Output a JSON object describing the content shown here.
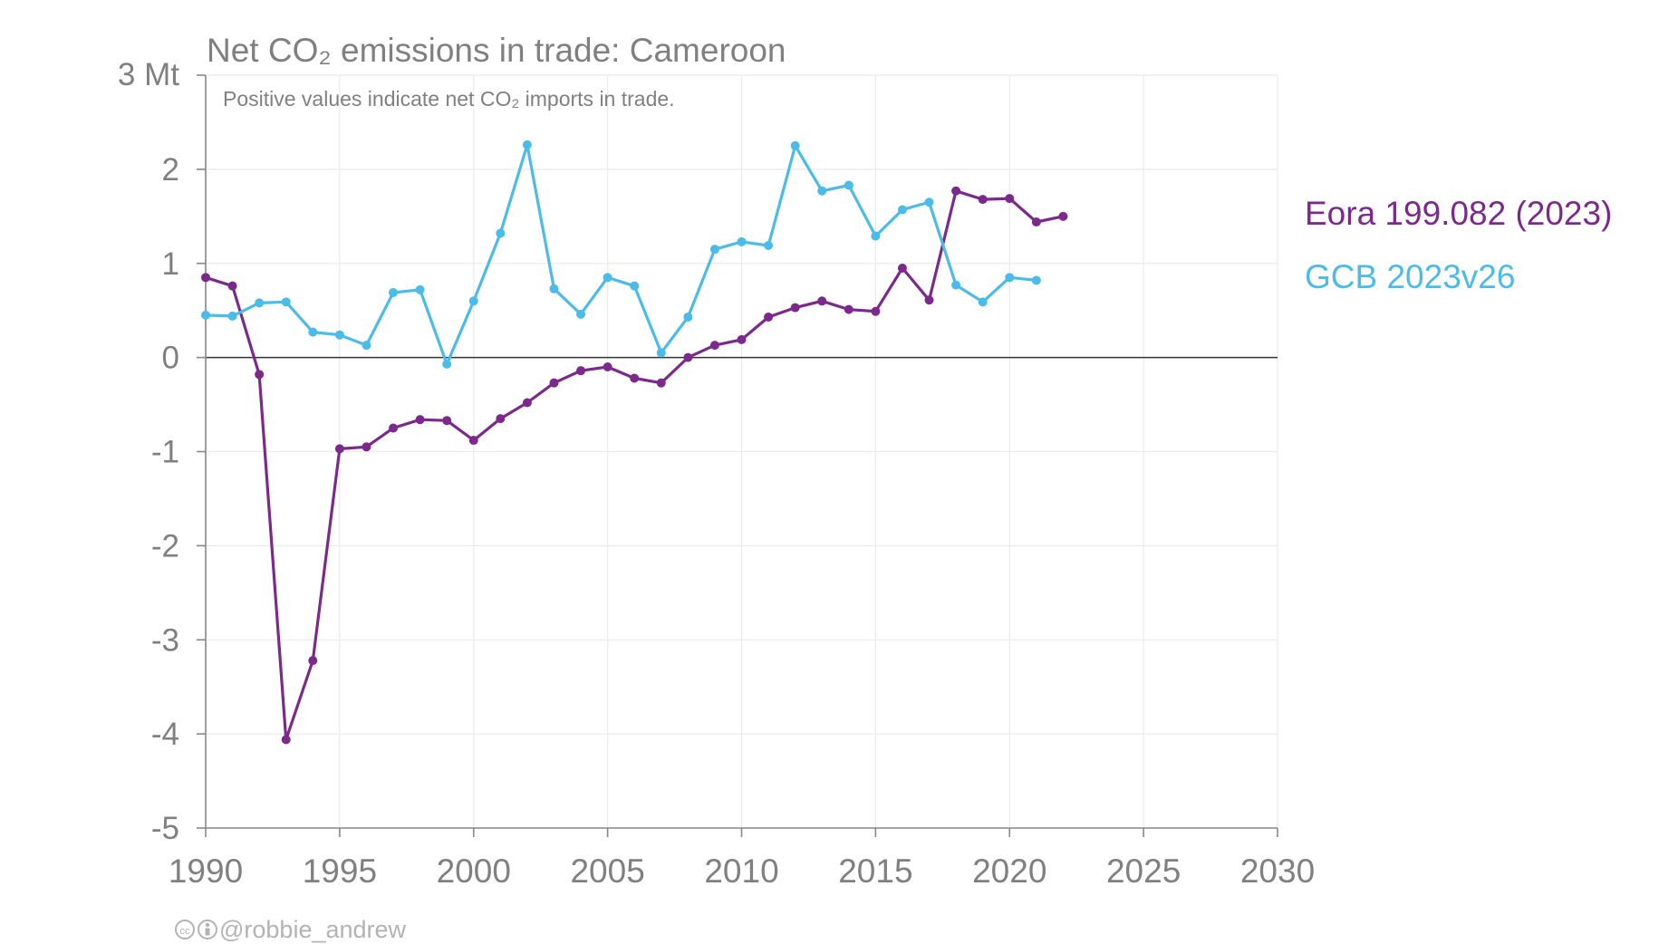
{
  "chart_data": {
    "type": "line",
    "title": "Net CO₂ emissions in trade: Cameroon",
    "subtitle": "Positive values indicate net CO₂ imports in trade.",
    "xlabel": "",
    "ylabel": "",
    "y_unit_label": "3 Mt",
    "xlim": [
      1990,
      2030
    ],
    "ylim": [
      -5,
      3
    ],
    "x_ticks": [
      "1990",
      "1995",
      "2000",
      "2005",
      "2010",
      "2015",
      "2020",
      "2025",
      "2030"
    ],
    "y_ticks": [
      "2",
      "1",
      "0",
      "-1",
      "-2",
      "-3",
      "-4",
      "-5"
    ],
    "grid": true,
    "legend_position": "right",
    "series": [
      {
        "name": "Eora 199.082 (2023)",
        "color": "#7b2a8c",
        "x": [
          1990,
          1991,
          1992,
          1993,
          1994,
          1995,
          1996,
          1997,
          1998,
          1999,
          2000,
          2001,
          2002,
          2003,
          2004,
          2005,
          2006,
          2007,
          2008,
          2009,
          2010,
          2011,
          2012,
          2013,
          2014,
          2015,
          2016,
          2017,
          2018,
          2019,
          2020,
          2021,
          2022
        ],
        "y": [
          0.85,
          0.76,
          -0.18,
          -4.06,
          -3.22,
          -0.97,
          -0.95,
          -0.75,
          -0.66,
          -0.67,
          -0.88,
          -0.65,
          -0.48,
          -0.27,
          -0.14,
          -0.1,
          -0.22,
          -0.27,
          0.0,
          0.13,
          0.19,
          0.43,
          0.53,
          0.6,
          0.51,
          0.49,
          0.95,
          0.61,
          1.77,
          1.68,
          1.69,
          1.44,
          1.5
        ]
      },
      {
        "name": "GCB 2023v26",
        "color": "#4bbbe8",
        "x": [
          1990,
          1991,
          1992,
          1993,
          1994,
          1995,
          1996,
          1997,
          1998,
          1999,
          2000,
          2001,
          2002,
          2003,
          2004,
          2005,
          2006,
          2007,
          2008,
          2009,
          2010,
          2011,
          2012,
          2013,
          2014,
          2015,
          2016,
          2017,
          2018,
          2019,
          2020,
          2021
        ],
        "y": [
          0.45,
          0.44,
          0.58,
          0.59,
          0.27,
          0.24,
          0.13,
          0.69,
          0.72,
          -0.07,
          0.6,
          1.32,
          2.26,
          0.73,
          0.46,
          0.85,
          0.76,
          0.05,
          0.43,
          1.15,
          1.23,
          1.19,
          2.25,
          1.77,
          1.83,
          1.29,
          1.57,
          1.65,
          0.77,
          0.59,
          0.85,
          0.82
        ]
      }
    ]
  },
  "credit": {
    "cc_icon": "creative-commons-icon",
    "by_icon": "attribution-icon",
    "text": "@robbie_andrew"
  }
}
